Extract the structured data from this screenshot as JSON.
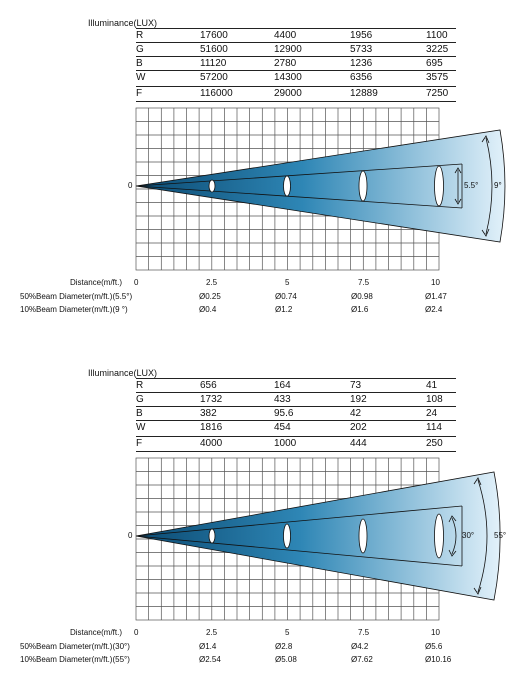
{
  "panels": [
    {
      "table_title": "Illuminance(LUX)",
      "rows": [
        {
          "label": "R",
          "values": [
            "17600",
            "4400",
            "1956",
            "1100"
          ]
        },
        {
          "label": "G",
          "values": [
            "51600",
            "12900",
            "5733",
            "3225"
          ]
        },
        {
          "label": "B",
          "values": [
            "11120",
            "2780",
            "1236",
            "695"
          ]
        },
        {
          "label": "W",
          "values": [
            "57200",
            "14300",
            "6356",
            "3575"
          ]
        },
        {
          "label": "F",
          "values": [
            "116000",
            "29000",
            "12889",
            "7250"
          ]
        }
      ],
      "origin_label": "0",
      "inner_angle": "5.5°",
      "outer_angle": "9°",
      "inner_half": 0.055,
      "outer_half": 0.32,
      "distance_label": "Distance(m/ft.)",
      "distances": [
        "0",
        "2.5",
        "5",
        "7.5",
        "10"
      ],
      "beam50_label": "50%Beam Diameter(m/ft.)(5.5°)",
      "beam50": [
        "Ø0.25",
        "Ø0.74",
        "Ø0.98",
        "Ø1.47"
      ],
      "beam10_label": "10%Beam Diameter(m/ft.)(9 °)",
      "beam10": [
        "Ø0.4",
        "Ø1.2",
        "Ø1.6",
        "Ø2.4"
      ]
    },
    {
      "table_title": "Illuminance(LUX)",
      "rows": [
        {
          "label": "R",
          "values": [
            "656",
            "164",
            "73",
            "41"
          ]
        },
        {
          "label": "G",
          "values": [
            "1732",
            "433",
            "192",
            "108"
          ]
        },
        {
          "label": "B",
          "values": [
            "382",
            "95.6",
            "42",
            "24"
          ]
        },
        {
          "label": "W",
          "values": [
            "1816",
            "454",
            "202",
            "114"
          ]
        },
        {
          "label": "F",
          "values": [
            "4000",
            "1000",
            "444",
            "250"
          ]
        }
      ],
      "origin_label": "0",
      "inner_angle": "30°",
      "outer_angle": "55°",
      "inner_half": 0.09,
      "outer_half": 0.35,
      "distance_label": "Distance(m/ft.)",
      "distances": [
        "0",
        "2.5",
        "5",
        "7.5",
        "10"
      ],
      "beam50_label": "50%Beam Diameter(m/ft.)(30°)",
      "beam50": [
        "Ø1.4",
        "Ø2.8",
        "Ø4.2",
        "Ø5.6"
      ],
      "beam10_label": "10%Beam Diameter(m/ft.)(55°)",
      "beam10": [
        "Ø2.54",
        "Ø5.08",
        "Ø7.62",
        "Ø10.16"
      ]
    }
  ]
}
